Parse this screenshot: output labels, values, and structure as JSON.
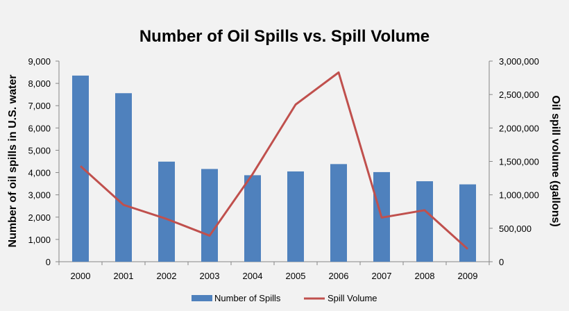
{
  "chart_data": {
    "type": "bar",
    "title": "Number of Oil Spills vs. Spill Volume",
    "categories": [
      "2000",
      "2001",
      "2002",
      "2003",
      "2004",
      "2005",
      "2006",
      "2007",
      "2008",
      "2009"
    ],
    "ylabel": "Number of oil spills in U.S. water",
    "y2label": "Oil spill volume (gallons)",
    "ylim": [
      0,
      9000
    ],
    "y2lim": [
      0,
      3000000
    ],
    "yticks": [
      "0",
      "1,000",
      "2,000",
      "3,000",
      "4,000",
      "5,000",
      "6,000",
      "7,000",
      "8,000",
      "9,000"
    ],
    "y2ticks": [
      "0",
      "500,000",
      "1,000,000",
      "1,500,000",
      "2,000,000",
      "2,500,000",
      "3,000,000"
    ],
    "grid": false,
    "legend_position": "bottom",
    "series": [
      {
        "name": "Number of Spills",
        "type": "bar",
        "axis": "left",
        "color": "#4f81bd",
        "values": [
          8350,
          7560,
          4490,
          4160,
          3880,
          4050,
          4380,
          4020,
          3610,
          3470
        ]
      },
      {
        "name": "Spill Volume",
        "type": "line",
        "axis": "right",
        "color": "#c0504d",
        "values": [
          1430000,
          850000,
          640000,
          390000,
          1310000,
          2350000,
          2830000,
          660000,
          770000,
          190000
        ]
      }
    ]
  }
}
